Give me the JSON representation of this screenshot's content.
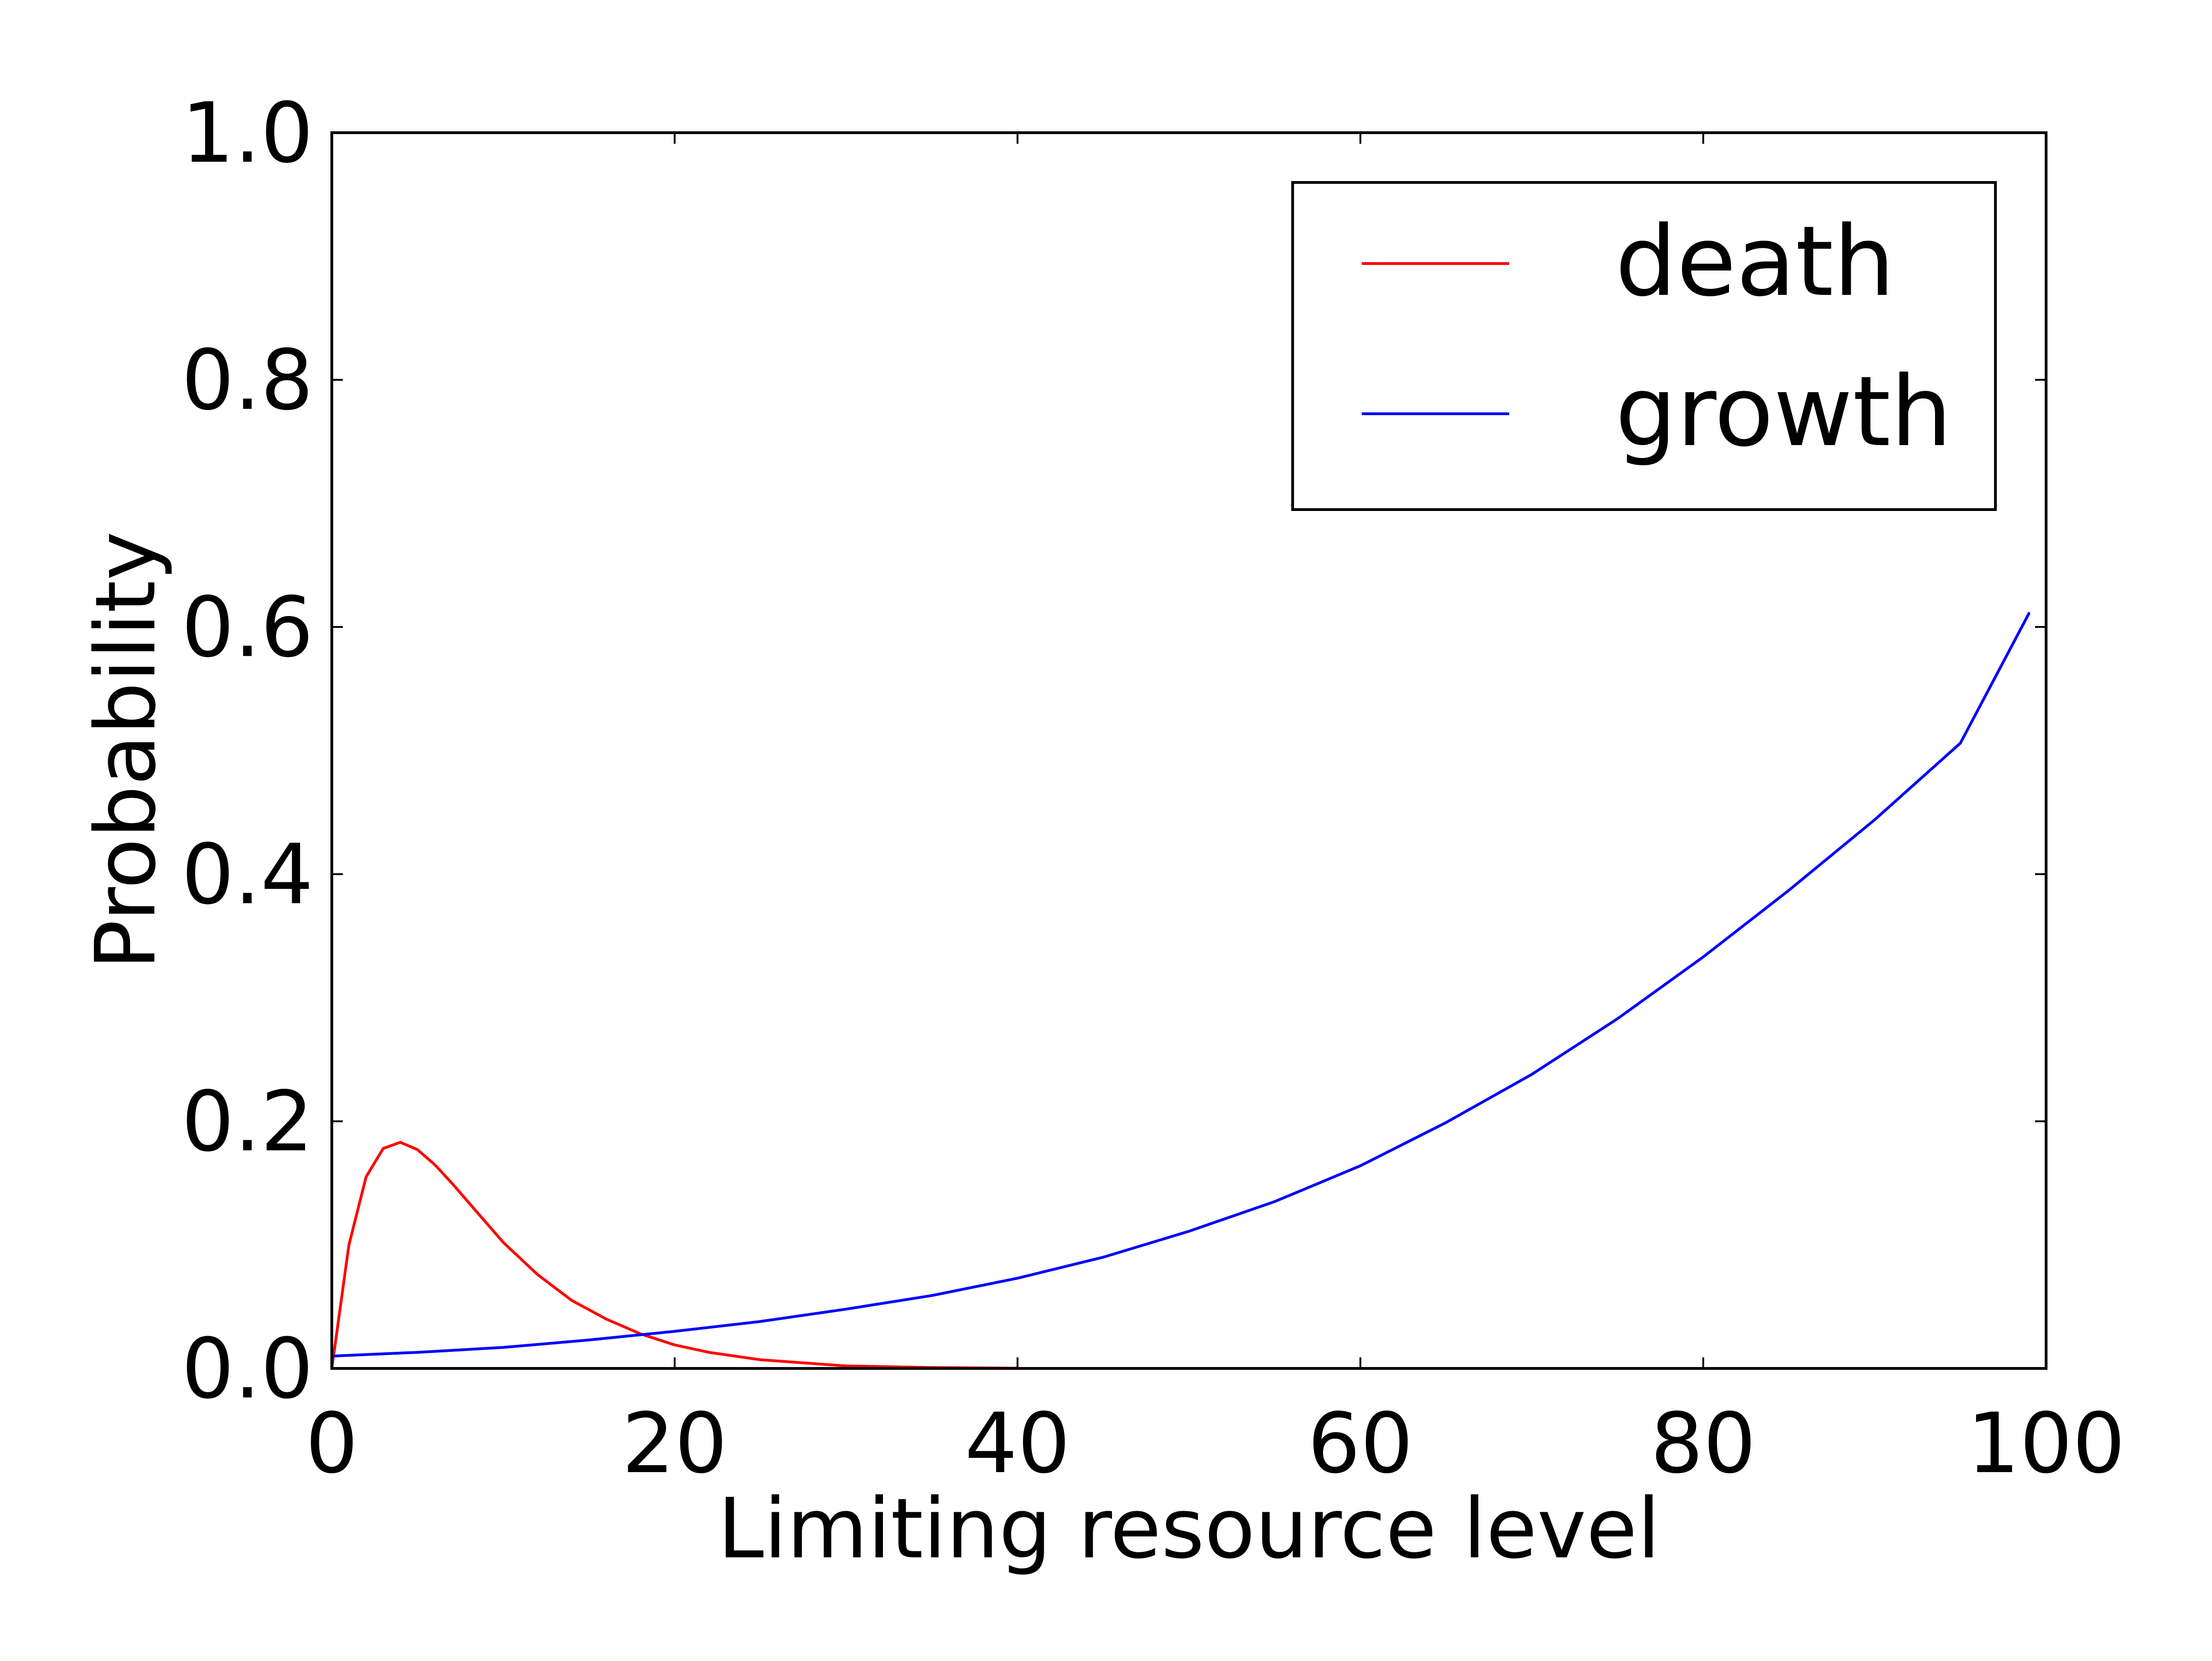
{
  "chart_data": {
    "type": "line",
    "xlabel": "Limiting resource level",
    "ylabel": "Probability",
    "xlim": [
      0,
      100
    ],
    "ylim": [
      0.0,
      1.0
    ],
    "xticks": [
      0,
      20,
      40,
      60,
      80,
      100
    ],
    "xtick_labels": [
      "0",
      "20",
      "40",
      "60",
      "80",
      "100"
    ],
    "yticks": [
      0.0,
      0.2,
      0.4,
      0.6,
      0.8,
      1.0
    ],
    "ytick_labels": [
      "0.0",
      "0.2",
      "0.4",
      "0.6",
      "0.8",
      "1.0"
    ],
    "grid": false,
    "legend_position": "top-right",
    "series": [
      {
        "name": "death",
        "color": "#ff0000",
        "x": [
          0,
          1,
          2,
          3,
          4,
          5,
          6,
          7,
          8,
          9,
          10,
          12,
          14,
          16,
          18,
          20,
          22,
          25,
          28,
          30,
          35,
          40
        ],
        "y": [
          0.0,
          0.1,
          0.155,
          0.178,
          0.183,
          0.177,
          0.165,
          0.15,
          0.134,
          0.118,
          0.102,
          0.076,
          0.055,
          0.04,
          0.028,
          0.019,
          0.013,
          0.007,
          0.004,
          0.002,
          0.0007,
          0.0002
        ]
      },
      {
        "name": "growth",
        "color": "#0000ff",
        "x": [
          0,
          5,
          10,
          15,
          20,
          25,
          30,
          35,
          40,
          45,
          50,
          55,
          60,
          65,
          70,
          75,
          80,
          85,
          90,
          95,
          99
        ],
        "y": [
          0.01,
          0.013,
          0.017,
          0.023,
          0.03,
          0.038,
          0.048,
          0.059,
          0.073,
          0.09,
          0.111,
          0.135,
          0.164,
          0.199,
          0.238,
          0.283,
          0.333,
          0.387,
          0.444,
          0.506,
          0.611
        ]
      }
    ]
  }
}
